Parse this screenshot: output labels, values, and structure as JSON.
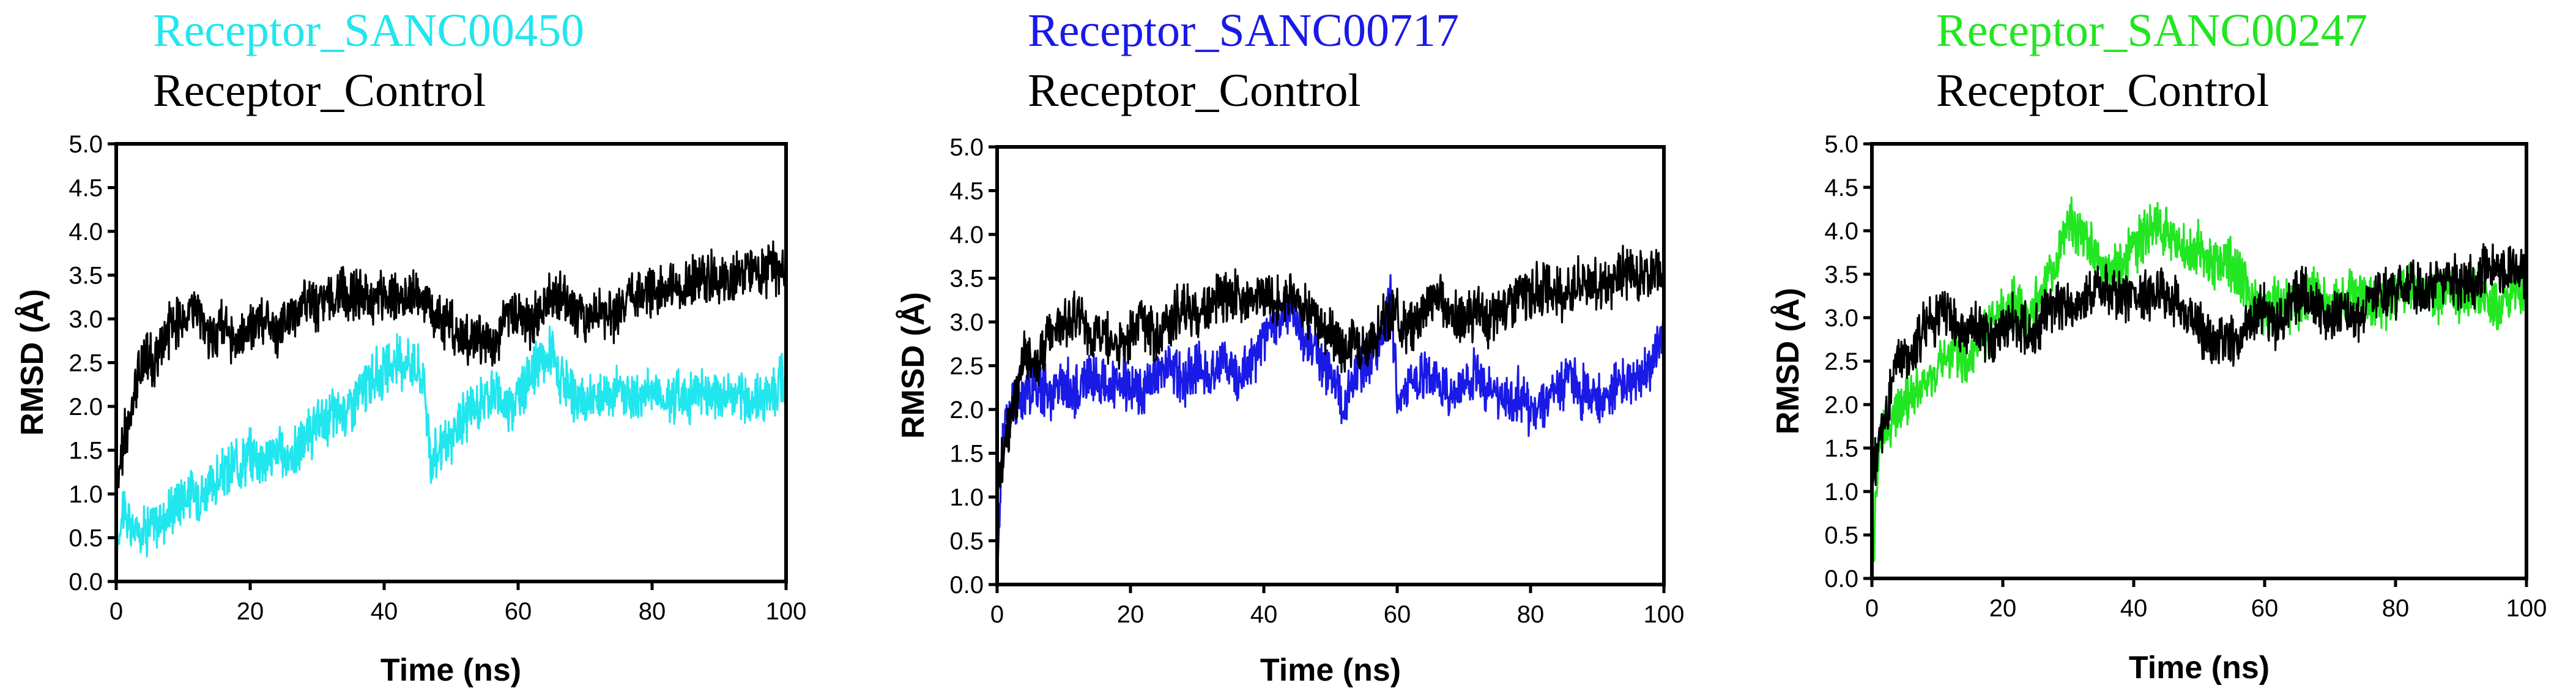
{
  "chart_data": [
    {
      "type": "line",
      "legend": "top-left",
      "xlabel": "Time (ns)",
      "ylabel": "RMSD (Å)",
      "xlim": [
        0,
        100
      ],
      "ylim": [
        0,
        5
      ],
      "xticks": [
        "0",
        "20",
        "40",
        "60",
        "80",
        "100"
      ],
      "yticks": [
        "0.0",
        "0.5",
        "1.0",
        "1.5",
        "2.0",
        "2.5",
        "3.0",
        "3.5",
        "4.0",
        "4.5",
        "5.0"
      ],
      "series": [
        {
          "name": "Receptor_SANC00450",
          "color": "#22e6ee",
          "x": [
            0,
            1,
            2,
            4,
            6,
            8,
            10,
            12,
            14,
            16,
            18,
            20,
            22,
            24,
            26,
            28,
            30,
            32,
            34,
            36,
            38,
            40,
            42,
            44,
            46,
            47,
            48,
            50,
            52,
            54,
            56,
            58,
            60,
            62,
            64,
            65,
            66,
            68,
            70,
            72,
            74,
            76,
            78,
            80,
            82,
            84,
            86,
            88,
            90,
            92,
            94,
            96,
            98,
            100
          ],
          "y": [
            0.3,
            0.9,
            0.6,
            0.6,
            0.65,
            0.8,
            1.0,
            1.0,
            1.05,
            1.2,
            1.35,
            1.45,
            1.4,
            1.5,
            1.4,
            1.6,
            1.75,
            1.9,
            1.95,
            2.1,
            2.3,
            2.4,
            2.5,
            2.55,
            2.3,
            1.3,
            1.5,
            1.6,
            1.9,
            2.0,
            2.2,
            2.0,
            2.1,
            2.4,
            2.5,
            2.7,
            2.3,
            2.1,
            2.05,
            2.1,
            2.2,
            2.15,
            2.1,
            2.2,
            2.1,
            2.15,
            2.1,
            2.2,
            2.1,
            2.15,
            2.05,
            2.1,
            2.2,
            2.3
          ]
        },
        {
          "name": "Receptor_Control",
          "color": "#000000",
          "x": [
            0,
            1,
            2,
            3,
            4,
            6,
            8,
            10,
            12,
            14,
            16,
            18,
            20,
            22,
            24,
            26,
            28,
            30,
            32,
            34,
            36,
            38,
            40,
            42,
            44,
            46,
            48,
            50,
            52,
            54,
            56,
            58,
            60,
            62,
            64,
            66,
            68,
            70,
            72,
            74,
            76,
            78,
            80,
            82,
            84,
            86,
            88,
            90,
            92,
            94,
            96,
            98,
            100
          ],
          "y": [
            1.0,
            1.6,
            1.8,
            2.2,
            2.6,
            2.5,
            2.9,
            3.0,
            3.1,
            2.8,
            2.9,
            2.7,
            2.9,
            3.0,
            2.8,
            3.0,
            3.2,
            3.1,
            3.2,
            3.3,
            3.3,
            3.2,
            3.3,
            3.25,
            3.3,
            3.2,
            3.0,
            2.9,
            2.7,
            2.8,
            2.7,
            3.0,
            3.1,
            2.9,
            3.2,
            3.3,
            3.1,
            3.0,
            3.1,
            3.0,
            3.2,
            3.3,
            3.3,
            3.4,
            3.3,
            3.4,
            3.5,
            3.4,
            3.4,
            3.6,
            3.5,
            3.6,
            3.5
          ]
        }
      ]
    },
    {
      "type": "line",
      "legend": "top-left",
      "xlabel": "Time (ns)",
      "ylabel": "RMSD (Å)",
      "xlim": [
        0,
        100
      ],
      "ylim": [
        0,
        5
      ],
      "xticks": [
        "0",
        "20",
        "40",
        "60",
        "80",
        "100"
      ],
      "yticks": [
        "0.0",
        "0.5",
        "1.0",
        "1.5",
        "2.0",
        "2.5",
        "3.0",
        "3.5",
        "4.0",
        "4.5",
        "5.0"
      ],
      "series": [
        {
          "name": "Receptor_SANC00717",
          "color": "#1a1ae6",
          "x": [
            0,
            0.5,
            1,
            2,
            4,
            6,
            8,
            10,
            12,
            14,
            16,
            18,
            20,
            22,
            24,
            26,
            28,
            30,
            32,
            34,
            36,
            38,
            40,
            42,
            44,
            46,
            48,
            50,
            52,
            54,
            56,
            58,
            59,
            60,
            62,
            64,
            66,
            68,
            70,
            72,
            74,
            76,
            78,
            80,
            82,
            84,
            86,
            88,
            90,
            92,
            94,
            96,
            98,
            100
          ],
          "y": [
            0.0,
            1.2,
            1.8,
            2.0,
            2.2,
            2.3,
            2.2,
            2.3,
            2.2,
            2.4,
            2.3,
            2.2,
            2.3,
            2.2,
            2.4,
            2.5,
            2.3,
            2.5,
            2.4,
            2.6,
            2.4,
            2.5,
            2.8,
            3.0,
            3.2,
            2.8,
            2.6,
            2.4,
            2.0,
            2.4,
            2.6,
            2.9,
            3.3,
            2.2,
            2.3,
            2.4,
            2.3,
            2.2,
            2.3,
            2.4,
            2.2,
            2.1,
            2.2,
            2.0,
            2.1,
            2.2,
            2.3,
            2.2,
            2.1,
            2.2,
            2.3,
            2.4,
            2.5,
            2.9
          ]
        },
        {
          "name": "Receptor_Control",
          "color": "#000000",
          "x": [
            0,
            1,
            2,
            3,
            4,
            6,
            8,
            10,
            12,
            14,
            16,
            18,
            20,
            22,
            24,
            26,
            28,
            30,
            32,
            34,
            36,
            38,
            40,
            42,
            44,
            46,
            48,
            50,
            52,
            54,
            56,
            58,
            60,
            62,
            64,
            66,
            68,
            70,
            72,
            74,
            76,
            78,
            80,
            82,
            84,
            86,
            88,
            90,
            92,
            94,
            96,
            98,
            100
          ],
          "y": [
            1.0,
            1.6,
            1.8,
            2.2,
            2.6,
            2.5,
            2.9,
            3.0,
            3.1,
            2.8,
            2.9,
            2.7,
            2.9,
            3.0,
            2.8,
            3.0,
            3.2,
            3.1,
            3.2,
            3.3,
            3.3,
            3.2,
            3.3,
            3.25,
            3.3,
            3.2,
            3.0,
            2.9,
            2.7,
            2.8,
            2.7,
            3.0,
            3.1,
            2.9,
            3.2,
            3.3,
            3.1,
            3.0,
            3.1,
            3.0,
            3.2,
            3.3,
            3.3,
            3.4,
            3.3,
            3.4,
            3.5,
            3.4,
            3.4,
            3.6,
            3.5,
            3.6,
            3.5
          ]
        }
      ]
    },
    {
      "type": "line",
      "legend": "top-left",
      "xlabel": "Time (ns)",
      "ylabel": "RMSD (Å)",
      "xlim": [
        0,
        100
      ],
      "ylim": [
        0,
        5
      ],
      "xticks": [
        "0",
        "20",
        "40",
        "60",
        "80",
        "100"
      ],
      "yticks": [
        "0.0",
        "0.5",
        "1.0",
        "1.5",
        "2.0",
        "2.5",
        "3.0",
        "3.5",
        "4.0",
        "4.5",
        "5.0"
      ],
      "series": [
        {
          "name": "Receptor_SANC00247",
          "color": "#22e622",
          "x": [
            0,
            1,
            2,
            4,
            6,
            8,
            10,
            12,
            14,
            16,
            18,
            20,
            22,
            24,
            26,
            28,
            30,
            32,
            34,
            36,
            38,
            40,
            42,
            44,
            46,
            48,
            50,
            52,
            54,
            56,
            58,
            60,
            62,
            64,
            66,
            68,
            70,
            72,
            74,
            76,
            78,
            80,
            82,
            84,
            86,
            88,
            90,
            92,
            94,
            96,
            98,
            100
          ],
          "y": [
            0.0,
            1.5,
            1.7,
            1.9,
            2.1,
            2.2,
            2.4,
            2.6,
            2.5,
            2.7,
            2.9,
            3.0,
            3.2,
            3.0,
            3.3,
            3.6,
            4.1,
            4.0,
            3.7,
            3.5,
            3.6,
            3.8,
            4.0,
            4.1,
            3.9,
            3.7,
            3.8,
            3.6,
            3.7,
            3.5,
            3.2,
            3.1,
            3.2,
            3.1,
            3.2,
            3.3,
            3.1,
            3.2,
            3.3,
            3.2,
            3.1,
            3.3,
            3.4,
            3.3,
            3.2,
            3.3,
            3.2,
            3.3,
            3.2,
            3.1,
            3.3,
            3.2
          ]
        },
        {
          "name": "Receptor_Control",
          "color": "#000000",
          "x": [
            0,
            1,
            2,
            3,
            4,
            6,
            8,
            10,
            12,
            14,
            16,
            18,
            20,
            22,
            24,
            26,
            28,
            30,
            32,
            34,
            36,
            38,
            40,
            42,
            44,
            46,
            48,
            50,
            52,
            54,
            56,
            58,
            60,
            62,
            64,
            66,
            68,
            70,
            72,
            74,
            76,
            78,
            80,
            82,
            84,
            86,
            88,
            90,
            92,
            94,
            96,
            98,
            100
          ],
          "y": [
            1.0,
            1.6,
            1.8,
            2.2,
            2.6,
            2.5,
            2.9,
            3.0,
            3.1,
            2.8,
            2.9,
            2.7,
            2.9,
            3.0,
            2.8,
            3.0,
            3.2,
            3.1,
            3.2,
            3.3,
            3.3,
            3.2,
            3.3,
            3.25,
            3.3,
            3.2,
            3.0,
            2.9,
            2.7,
            2.8,
            2.7,
            3.0,
            3.1,
            2.9,
            3.2,
            3.3,
            3.1,
            3.0,
            3.1,
            3.0,
            3.2,
            3.3,
            3.3,
            3.4,
            3.3,
            3.4,
            3.5,
            3.4,
            3.4,
            3.6,
            3.5,
            3.6,
            3.5
          ]
        }
      ]
    }
  ]
}
